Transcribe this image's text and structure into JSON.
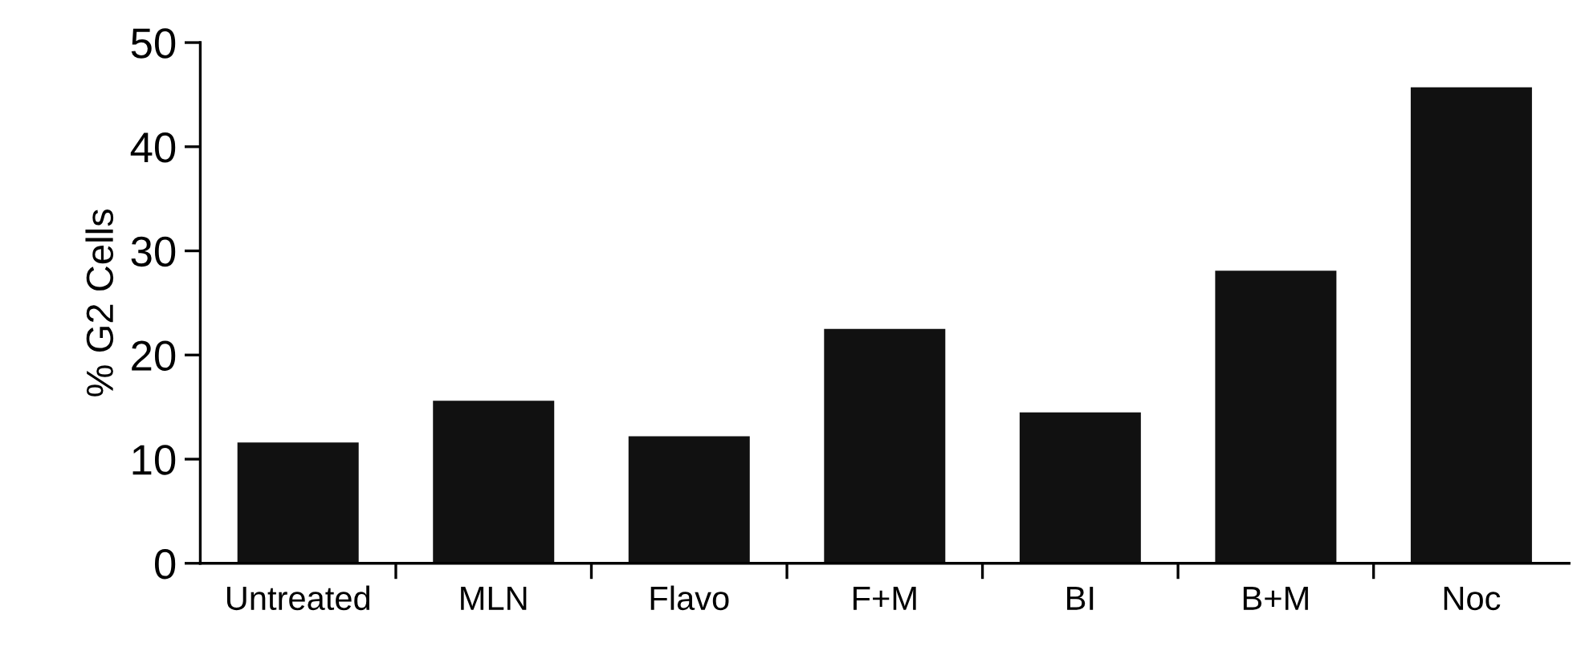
{
  "chart_data": {
    "type": "bar",
    "ylabel": "% G2 Cells",
    "categories": [
      "Untreated",
      "MLN",
      "Flavo",
      "F+M",
      "BI",
      "B+M",
      "Noc"
    ],
    "values": [
      11.6,
      15.6,
      12.2,
      22.5,
      14.5,
      28.1,
      45.7
    ],
    "color": "#111111",
    "ylim": [
      0,
      50
    ],
    "yticks": [
      0,
      10,
      20,
      30,
      40,
      50
    ],
    "grid": false,
    "legend": false
  }
}
